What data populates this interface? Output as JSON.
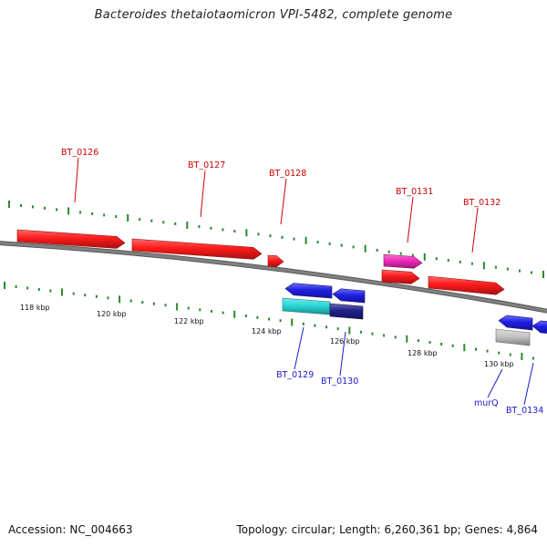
{
  "header": {
    "title": "Bacteroides thetaiotaomicron VPI-5482, complete genome"
  },
  "footer": {
    "accession_label": "Accession:",
    "accession_value": "NC_004663",
    "topology_label": "Topology:",
    "topology_value": "circular;",
    "length_label": "Length:",
    "length_value": "6,260,361 bp;",
    "genes_label": "Genes:",
    "genes_value": "4,864"
  },
  "scale": {
    "unit": "kbp",
    "labels": [
      "118 kbp",
      "120 kbp",
      "122 kbp",
      "124 kbp",
      "126 kbp",
      "128 kbp",
      "130 kbp"
    ],
    "tick_color": "#2a8a2a"
  },
  "colors": {
    "forward_gene": "#ff1a1a",
    "forward_label": "#cc0000",
    "reverse_gene": "#1f1fe6",
    "reverse_label": "#1a1acc",
    "highlight_pink": "#f02ab8",
    "highlight_cyan": "#2ad8d8",
    "highlight_navy": "#20208a",
    "pseudo_gray": "#c4c4c4",
    "backbone": "#808080"
  },
  "genes": [
    {
      "id": "BT_0126",
      "label": "BT_0126",
      "strand": "forward",
      "color": "forward_gene"
    },
    {
      "id": "BT_0127",
      "label": "BT_0127",
      "strand": "forward",
      "color": "forward_gene"
    },
    {
      "id": "BT_0128",
      "label": "BT_0128",
      "strand": "forward",
      "color": "forward_gene"
    },
    {
      "id": "BT_0131",
      "label": "BT_0131",
      "strand": "forward",
      "color": "highlight_pink"
    },
    {
      "id": "BT_0131b",
      "label": "",
      "strand": "forward",
      "color": "forward_gene"
    },
    {
      "id": "BT_0132",
      "label": "BT_0132",
      "strand": "forward",
      "color": "forward_gene"
    },
    {
      "id": "BT_0129",
      "label": "BT_0129",
      "strand": "reverse",
      "color": "reverse_gene"
    },
    {
      "id": "BT_0129b",
      "label": "",
      "strand": "reverse",
      "color": "highlight_cyan"
    },
    {
      "id": "BT_0130",
      "label": "BT_0130",
      "strand": "reverse",
      "color": "reverse_gene"
    },
    {
      "id": "BT_0130b",
      "label": "",
      "strand": "reverse",
      "color": "highlight_navy"
    },
    {
      "id": "murQ",
      "label": "murQ",
      "strand": "reverse",
      "color": "pseudo_gray"
    },
    {
      "id": "murQ_b",
      "label": "",
      "strand": "reverse",
      "color": "reverse_gene"
    },
    {
      "id": "BT_0134",
      "label": "BT_0134",
      "strand": "reverse",
      "color": "reverse_gene"
    }
  ]
}
